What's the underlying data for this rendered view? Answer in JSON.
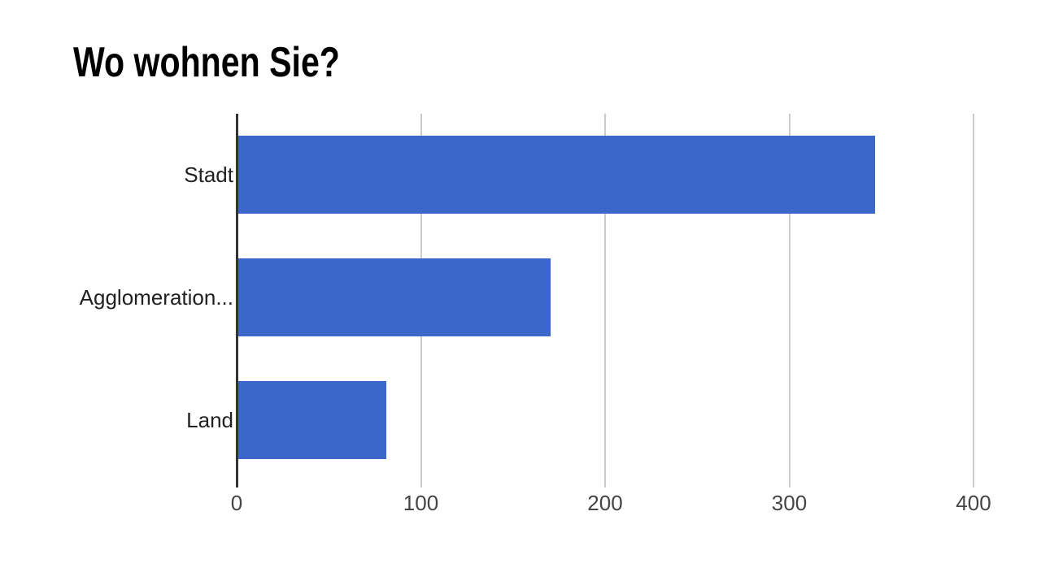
{
  "page_title": "Wo wohnen Sie?",
  "chart_data": {
    "type": "bar",
    "orientation": "horizontal",
    "title": "Wo wohnen Sie?",
    "categories": [
      "Stadt",
      "Agglomeration...",
      "Land"
    ],
    "values": [
      346,
      170,
      81
    ],
    "xlabel": "",
    "ylabel": "",
    "xlim": [
      0,
      400
    ],
    "xticks": [
      0,
      100,
      200,
      300,
      400
    ],
    "xtick_labels": [
      "0",
      "100",
      "200",
      "300",
      "400"
    ],
    "grid": true,
    "legend": "none",
    "colors": {
      "bar": "#3A67C9",
      "gridline": "#CCCCCC",
      "axis_line": "#333333",
      "tick_label": "#444444",
      "category_label": "#212121",
      "title": "#000000",
      "background": "#FFFFFF"
    }
  }
}
